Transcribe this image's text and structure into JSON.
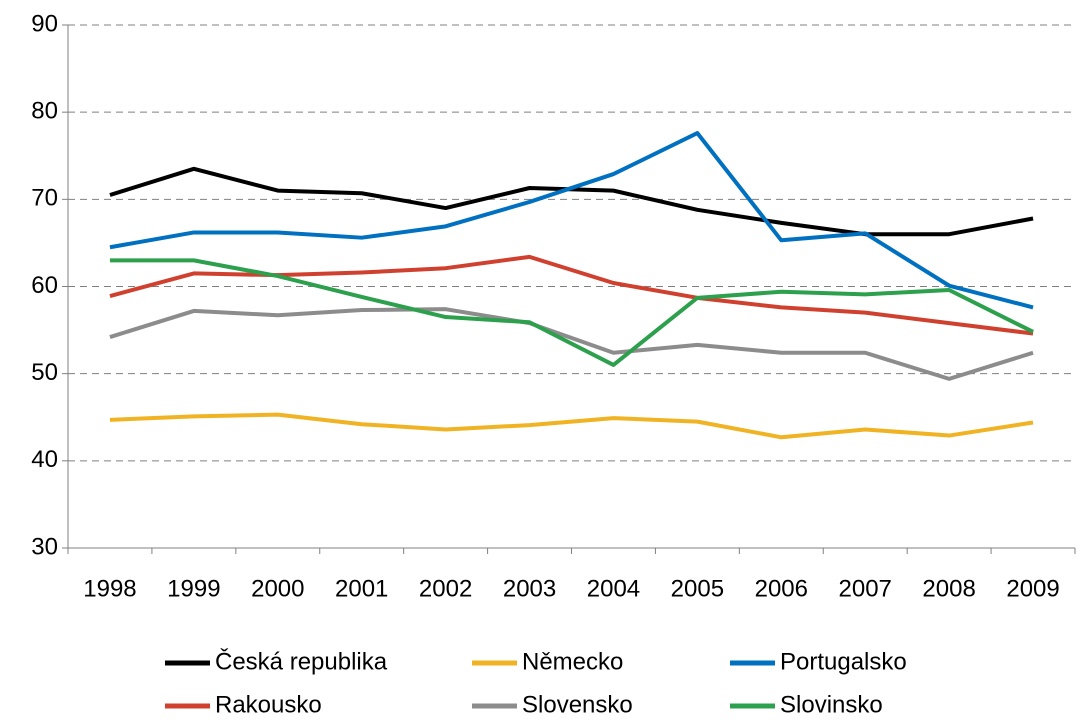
{
  "chart_data": {
    "type": "line",
    "categories": [
      "1998",
      "1999",
      "2000",
      "2001",
      "2002",
      "2003",
      "2004",
      "2005",
      "2006",
      "2007",
      "2008",
      "2009"
    ],
    "series": [
      {
        "name": "Česká republika",
        "color": "#000000",
        "values": [
          70.5,
          73.5,
          71,
          70.7,
          69,
          71.3,
          71,
          68.8,
          67.3,
          66,
          66,
          67.8
        ]
      },
      {
        "name": "Německo",
        "color": "#f0b323",
        "values": [
          44.7,
          45.1,
          45.3,
          44.2,
          43.6,
          44.1,
          44.9,
          44.5,
          42.7,
          43.6,
          42.9,
          44.4
        ]
      },
      {
        "name": "Portugalsko",
        "color": "#0070c0",
        "values": [
          64.5,
          66.2,
          66.2,
          65.6,
          66.9,
          69.7,
          72.9,
          77.6,
          65.3,
          66.1,
          60.1,
          57.6
        ]
      },
      {
        "name": "Rakousko",
        "color": "#d0402f",
        "values": [
          58.9,
          61.5,
          61.3,
          61.6,
          62.1,
          63.4,
          60.4,
          58.7,
          57.6,
          57,
          55.8,
          54.6
        ]
      },
      {
        "name": "Slovensko",
        "color": "#8c8c8c",
        "values": [
          54.2,
          57.2,
          56.7,
          57.3,
          57.4,
          55.8,
          52.4,
          53.3,
          52.4,
          52.4,
          49.4,
          52.4
        ]
      },
      {
        "name": "Slovinsko",
        "color": "#2ca04c",
        "values": [
          63,
          63,
          61.2,
          58.8,
          56.5,
          55.9,
          51,
          58.7,
          59.4,
          59.1,
          59.6,
          54.8
        ]
      }
    ],
    "ylim": [
      30,
      90
    ],
    "yticks": [
      30,
      40,
      50,
      60,
      70,
      80,
      90
    ],
    "grid": true,
    "legend": "bottom"
  }
}
